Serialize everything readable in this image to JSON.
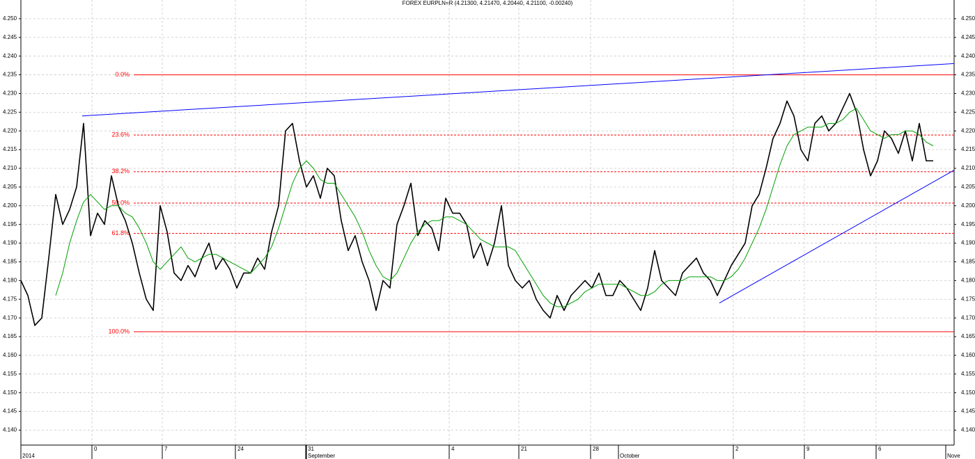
{
  "chart_data": {
    "type": "line",
    "title": "FOREX EURPLN=R (4.21300, 4.21470, 4.20440, 4.21100, -0.00240)",
    "xlim": [
      0,
      134
    ],
    "ylim": [
      4.136,
      4.255
    ],
    "grid": true,
    "yticks": [
      {
        "value": 4.14,
        "label": "4.140"
      },
      {
        "value": 4.145,
        "label": "4.145"
      },
      {
        "value": 4.15,
        "label": "4.150"
      },
      {
        "value": 4.155,
        "label": "4.155"
      },
      {
        "value": 4.16,
        "label": "4.160"
      },
      {
        "value": 4.165,
        "label": "4.165"
      },
      {
        "value": 4.17,
        "label": "4.170"
      },
      {
        "value": 4.175,
        "label": "4.175"
      },
      {
        "value": 4.18,
        "label": "4.180"
      },
      {
        "value": 4.185,
        "label": "4.185"
      },
      {
        "value": 4.19,
        "label": "4.190"
      },
      {
        "value": 4.195,
        "label": "4.195"
      },
      {
        "value": 4.2,
        "label": "4.200"
      },
      {
        "value": 4.205,
        "label": "4.205"
      },
      {
        "value": 4.21,
        "label": "4.210"
      },
      {
        "value": 4.215,
        "label": "4.215"
      },
      {
        "value": 4.22,
        "label": "4.220"
      },
      {
        "value": 4.225,
        "label": "4.225"
      },
      {
        "value": 4.23,
        "label": "4.230"
      },
      {
        "value": 4.235,
        "label": "4.235"
      },
      {
        "value": 4.24,
        "label": "4.240"
      },
      {
        "value": 4.245,
        "label": "4.245"
      },
      {
        "value": 4.25,
        "label": "4.250"
      }
    ],
    "xticks": [
      {
        "value": 10.2,
        "label": "0"
      },
      {
        "value": 20.3,
        "label": "7"
      },
      {
        "value": 30.8,
        "label": "24"
      },
      {
        "value": 40.9,
        "label": "31"
      },
      {
        "value": 61.5,
        "label": "4"
      },
      {
        "value": 71.5,
        "label": "21"
      },
      {
        "value": 81.8,
        "label": "28"
      },
      {
        "value": 102.3,
        "label": "2"
      },
      {
        "value": 112.5,
        "label": "9"
      },
      {
        "value": 122.8,
        "label": "6"
      }
    ],
    "month_ticks": [
      {
        "value": 0,
        "label": "2014"
      },
      {
        "value": 41,
        "label": "September"
      },
      {
        "value": 85.8,
        "label": "October"
      },
      {
        "value": 132.8,
        "label": "Nove"
      }
    ],
    "series": [
      {
        "name": "EURPLN=R",
        "color": "#000000",
        "values": [
          4.18,
          4.176,
          4.168,
          4.17,
          4.186,
          4.203,
          4.195,
          4.199,
          4.205,
          4.222,
          4.192,
          4.198,
          4.195,
          4.208,
          4.2,
          4.196,
          4.19,
          4.182,
          4.175,
          4.172,
          4.2,
          4.193,
          4.182,
          4.18,
          4.184,
          4.181,
          4.186,
          4.19,
          4.183,
          4.186,
          4.183,
          4.178,
          4.182,
          4.182,
          4.186,
          4.183,
          4.193,
          4.2,
          4.22,
          4.222,
          4.212,
          4.205,
          4.208,
          4.202,
          4.21,
          4.208,
          4.196,
          4.188,
          4.192,
          4.185,
          4.18,
          4.172,
          4.18,
          4.178,
          4.195,
          4.2,
          4.206,
          4.192,
          4.196,
          4.194,
          4.188,
          4.202,
          4.198,
          4.198,
          4.195,
          4.186,
          4.19,
          4.184,
          4.19,
          4.2,
          4.184,
          4.18,
          4.178,
          4.18,
          4.175,
          4.172,
          4.17,
          4.176,
          4.172,
          4.176,
          4.178,
          4.18,
          4.178,
          4.182,
          4.176,
          4.176,
          4.18,
          4.178,
          4.175,
          4.172,
          4.178,
          4.188,
          4.18,
          4.178,
          4.176,
          4.182,
          4.184,
          4.186,
          4.182,
          4.18,
          4.176,
          4.18,
          4.184,
          4.187,
          4.19,
          4.2,
          4.203,
          4.21,
          4.218,
          4.222,
          4.228,
          4.224,
          4.215,
          4.212,
          4.222,
          4.224,
          4.22,
          4.222,
          4.226,
          4.23,
          4.225,
          4.215,
          4.208,
          4.212,
          4.22,
          4.218,
          4.214,
          4.22,
          4.212,
          4.222,
          4.212,
          4.212
        ]
      },
      {
        "color": "#00a000",
        "values": [
          null,
          null,
          null,
          null,
          null,
          4.176,
          4.182,
          4.19,
          4.196,
          4.201,
          4.203,
          4.201,
          4.199,
          4.2,
          4.2,
          4.198,
          4.197,
          4.194,
          4.19,
          4.185,
          4.183,
          4.185,
          4.187,
          4.189,
          4.186,
          4.185,
          4.186,
          4.187,
          4.187,
          4.186,
          4.185,
          4.184,
          4.183,
          4.182,
          4.184,
          4.186,
          4.189,
          4.194,
          4.2,
          4.206,
          4.21,
          4.212,
          4.21,
          4.207,
          4.206,
          4.206,
          4.203,
          4.2,
          4.197,
          4.193,
          4.188,
          4.184,
          4.181,
          4.18,
          4.182,
          4.186,
          4.19,
          4.193,
          4.195,
          4.196,
          4.196,
          4.197,
          4.197,
          4.196,
          4.195,
          4.193,
          4.191,
          4.19,
          4.189,
          4.189,
          4.189,
          4.188,
          4.185,
          4.182,
          4.179,
          4.176,
          4.174,
          4.173,
          4.173,
          4.174,
          4.175,
          4.177,
          4.178,
          4.179,
          4.179,
          4.179,
          4.179,
          4.178,
          4.177,
          4.176,
          4.176,
          4.177,
          4.179,
          4.18,
          4.18,
          4.18,
          4.181,
          4.181,
          4.181,
          4.181,
          4.18,
          4.18,
          4.181,
          4.183,
          4.186,
          4.19,
          4.194,
          4.199,
          4.205,
          4.211,
          4.216,
          4.219,
          4.22,
          4.221,
          4.221,
          4.221,
          4.222,
          4.222,
          4.223,
          4.225,
          4.226,
          4.223,
          4.22,
          4.219,
          4.218,
          4.219,
          4.219,
          4.22,
          4.22,
          4.219,
          4.217,
          4.216
        ]
      }
    ],
    "trendlines": [
      {
        "color": "#0000ff",
        "x": [
          8.8,
          134
        ],
        "values": [
          4.224,
          4.238
        ]
      },
      {
        "color": "#0000ff",
        "x": [
          100.3,
          134
        ],
        "values": [
          4.174,
          4.2095
        ]
      }
    ],
    "fib_color": "#ff0000",
    "fib_levels": [
      {
        "label": "0.0%",
        "value": 4.235,
        "solid": true
      },
      {
        "label": "23.6%",
        "value": 4.2189,
        "solid": false
      },
      {
        "label": "38.2%",
        "value": 4.2091,
        "solid": false
      },
      {
        "label": "50.0%",
        "value": 4.2007,
        "solid": false
      },
      {
        "label": "61.8%",
        "value": 4.1926,
        "solid": false
      },
      {
        "label": "100.0%",
        "value": 4.1663,
        "solid": true
      }
    ]
  }
}
